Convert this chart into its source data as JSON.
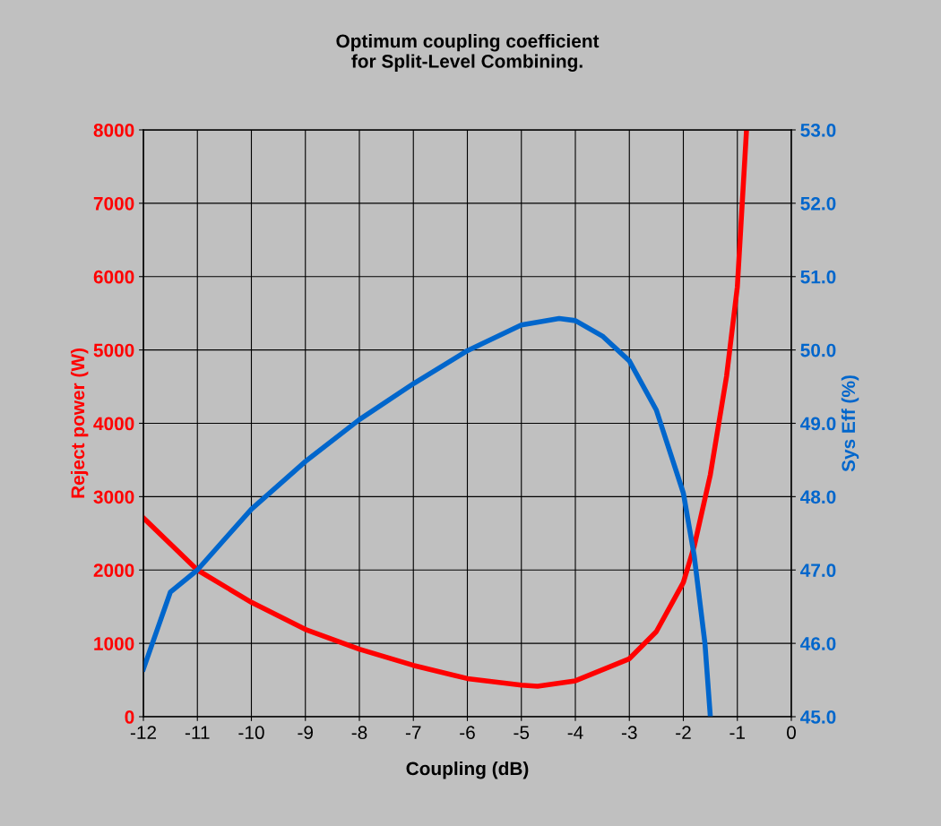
{
  "chart_data": {
    "type": "line",
    "title": "Optimum coupling coefficient\nfor Split-Level Combining.",
    "xlabel": "Coupling (dB)",
    "ylabel": "Reject power (W)",
    "y2label": "Sys Eff (%)",
    "xlim": [
      -12,
      0
    ],
    "xticks": [
      -12,
      -11,
      -10,
      -9,
      -8,
      -7,
      -6,
      -5,
      -4,
      -3,
      -2,
      -1,
      0
    ],
    "ylim": [
      0,
      8000
    ],
    "yticks": [
      0,
      1000,
      2000,
      3000,
      4000,
      5000,
      6000,
      7000,
      8000
    ],
    "y2lim": [
      45,
      53
    ],
    "y2ticks": [
      {
        "value": 45,
        "label": "45.0"
      },
      {
        "value": 46,
        "label": "46.0"
      },
      {
        "value": 47,
        "label": "47.0"
      },
      {
        "value": 48,
        "label": "48.0"
      },
      {
        "value": 49,
        "label": "49.0"
      },
      {
        "value": 50,
        "label": "50.0"
      },
      {
        "value": 51,
        "label": "51.0"
      },
      {
        "value": 52,
        "label": "52.0"
      },
      {
        "value": 53,
        "label": "53.0"
      }
    ],
    "grid": true,
    "legend": false,
    "marker": "none",
    "line_style": "solid",
    "series": [
      {
        "color": "#ff0000",
        "x": [
          -12,
          -11,
          -10,
          -9,
          -8,
          -7,
          -6,
          -5,
          -4.7,
          -4,
          -3,
          -2.5,
          -2,
          -1.8,
          -1.5,
          -1.2,
          -1,
          -0.83
        ],
        "values": [
          2710,
          2000,
          1560,
          1190,
          920,
          700,
          520,
          430,
          415,
          490,
          790,
          1160,
          1830,
          2320,
          3300,
          4640,
          5860,
          8000
        ]
      },
      {
        "color": "#0066cc",
        "axis": "y2",
        "x": [
          -12,
          -11.5,
          -11,
          -10,
          -9,
          -8,
          -7,
          -6,
          -5,
          -4.3,
          -4,
          -3.5,
          -3,
          -2.5,
          -2,
          -1.8,
          -1.6,
          -1.5
        ],
        "values": [
          45.65,
          46.7,
          47.0,
          47.83,
          48.48,
          49.05,
          49.54,
          49.99,
          50.34,
          50.43,
          50.4,
          50.19,
          49.85,
          49.18,
          48.05,
          47.2,
          46.0,
          45.0
        ]
      }
    ]
  }
}
